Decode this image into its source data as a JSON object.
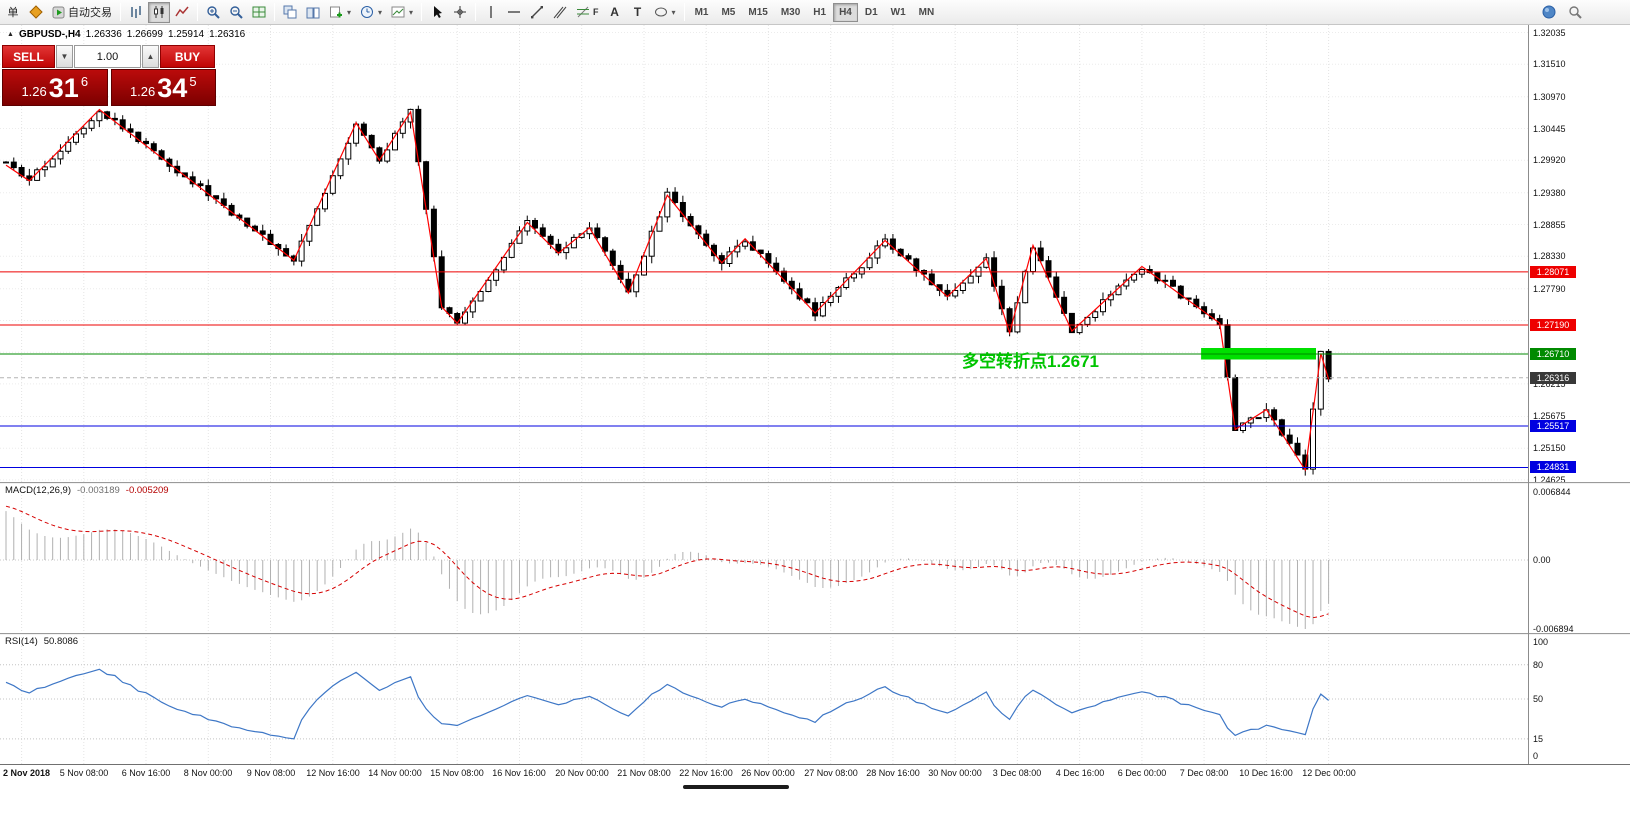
{
  "toolbar": {
    "orders_label": "单",
    "auto_trading_label": "自动交易",
    "text_tool_label": "A",
    "label_tool_label": "T",
    "fib_tool_label": "F",
    "timeframes": [
      "M1",
      "M5",
      "M15",
      "M30",
      "H1",
      "H4",
      "D1",
      "W1",
      "MN"
    ],
    "active_timeframe": "H4"
  },
  "trade_panel": {
    "sell_label": "SELL",
    "buy_label": "BUY",
    "volume_value": "1.00",
    "sell_price_prefix": "1.26",
    "sell_price_big": "31",
    "sell_price_sup": "6",
    "buy_price_prefix": "1.26",
    "buy_price_big": "34",
    "buy_price_sup": "5"
  },
  "symbol_header": {
    "marker": "▲",
    "symbol": "GBPUSD-,H4",
    "open": "1.26336",
    "high": "1.26699",
    "low": "1.25914",
    "close": "1.26316"
  },
  "annotation": {
    "text": "多空转折点1.2671",
    "color": "#00C400"
  },
  "indicators": {
    "macd_label": "MACD(12,26,9)",
    "macd_value_main": "-0.003189",
    "macd_value_signal": "-0.005209",
    "rsi_label": "RSI(14)",
    "rsi_value": "50.8086"
  },
  "chart_data": {
    "type": "candlestick",
    "title": "GBPUSD-,H4",
    "timeframe": "H4",
    "ohlc_current": [
      1.26336,
      1.26699,
      1.25914,
      1.26316
    ],
    "candle_count": 171,
    "ylim": [
      1.2459,
      1.3216
    ],
    "candle_up": "#FFFFFF",
    "candle_down": "#000000",
    "candle_outline": "#000000",
    "zigzag_color": "#FF0000",
    "macd_hist_color": "#B0B0B0",
    "macd_signal_color": "#D60000",
    "rsi_color": "#3E77C6",
    "x_label_start": 2,
    "x_label_step": 8,
    "x_labels": [
      "2 Nov 2018",
      "5 Nov 08:00",
      "6 Nov 16:00",
      "8 Nov 00:00",
      "9 Nov 08:00",
      "12 Nov 16:00",
      "14 Nov 00:00",
      "15 Nov 08:00",
      "16 Nov 16:00",
      "20 Nov 00:00",
      "21 Nov 08:00",
      "22 Nov 16:00",
      "26 Nov 00:00",
      "27 Nov 08:00",
      "28 Nov 16:00",
      "30 Nov 00:00",
      "3 Dec 08:00",
      "4 Dec 16:00",
      "6 Dec 00:00",
      "7 Dec 08:00",
      "10 Dec 16:00",
      "12 Dec 00:00"
    ],
    "y_axis_labels": [
      {
        "text": "1.32035",
        "price": 1.32035
      },
      {
        "text": "1.31510",
        "price": 1.3151
      },
      {
        "text": "1.30970",
        "price": 1.3097
      },
      {
        "text": "1.30445",
        "price": 1.30445
      },
      {
        "text": "1.29920",
        "price": 1.2992
      },
      {
        "text": "1.29380",
        "price": 1.2938
      },
      {
        "text": "1.28855",
        "price": 1.28855
      },
      {
        "text": "1.28330",
        "price": 1.2833
      },
      {
        "text": "1.27790",
        "price": 1.2779
      },
      {
        "text": "1.26215",
        "price": 1.26215
      },
      {
        "text": "1.25675",
        "price": 1.25675
      },
      {
        "text": "1.25150",
        "price": 1.2515
      },
      {
        "text": "1.24625",
        "price": 1.24625
      }
    ],
    "grid_prices": [
      1.32035,
      1.3151,
      1.3097,
      1.30445,
      1.2992,
      1.2938,
      1.28855,
      1.2833,
      1.2779,
      1.27265,
      1.2674,
      1.26215,
      1.25675,
      1.2515,
      1.24625
    ],
    "price_lines": [
      {
        "label": "1.28071",
        "price": 1.28071,
        "color": "#EE0000",
        "style": "solid"
      },
      {
        "label": "1.27190",
        "price": 1.2719,
        "color": "#EE0000",
        "style": "solid"
      },
      {
        "label": "1.26710",
        "price": 1.2671,
        "color": "#008A00",
        "style": "solid"
      },
      {
        "label": "1.26316",
        "price": 1.26316,
        "color": "#383838",
        "style": "dashed"
      },
      {
        "label": "1.25517",
        "price": 1.25517,
        "color": "#0000E0",
        "style": "solid"
      },
      {
        "label": "1.24831",
        "price": 1.24831,
        "color": "#0000E0",
        "style": "solid"
      }
    ],
    "green_zone": {
      "from_candle": 154,
      "to_candle": 168,
      "price_top": 1.2681,
      "price_bottom": 1.2662,
      "color": "#00E000"
    },
    "zigzag": [
      [
        0,
        1.2984
      ],
      [
        3,
        1.2958
      ],
      [
        12,
        1.3076
      ],
      [
        37,
        1.2826
      ],
      [
        45,
        1.3054
      ],
      [
        48,
        1.2992
      ],
      [
        52,
        1.3072
      ],
      [
        56,
        1.2749
      ],
      [
        58,
        1.2722
      ],
      [
        67,
        1.2889
      ],
      [
        71,
        1.2838
      ],
      [
        75,
        1.288
      ],
      [
        80,
        1.2772
      ],
      [
        85,
        1.2934
      ],
      [
        92,
        1.2822
      ],
      [
        95,
        1.2862
      ],
      [
        104,
        1.2739
      ],
      [
        113,
        1.2859
      ],
      [
        121,
        1.2766
      ],
      [
        126,
        1.2829
      ],
      [
        129,
        1.2706
      ],
      [
        132,
        1.2851
      ],
      [
        137,
        1.2709
      ],
      [
        146,
        1.2816
      ],
      [
        156,
        1.2722
      ],
      [
        158,
        1.2546
      ],
      [
        162,
        1.2579
      ],
      [
        167,
        1.2479
      ],
      [
        169,
        1.2672
      ],
      [
        170,
        1.2629
      ]
    ],
    "macd": {
      "type": "histogram+line",
      "params": "12,26,9",
      "current_main": -0.003189,
      "current_signal": -0.005209,
      "axis_labels": [
        {
          "text": "0.006844",
          "value": 0.006844
        },
        {
          "text": "0.00",
          "value": 0
        },
        {
          "text": "-0.006894",
          "value": -0.006894
        }
      ]
    },
    "rsi": {
      "type": "line",
      "period": 14,
      "current_value": 50.8086,
      "ylim": [
        0,
        100
      ],
      "levels": [
        80,
        50,
        15
      ],
      "axis_labels": [
        {
          "text": "100",
          "value": 100
        },
        {
          "text": "80",
          "value": 80
        },
        {
          "text": "50",
          "value": 50
        },
        {
          "text": "15",
          "value": 15
        },
        {
          "text": "0",
          "value": 0
        }
      ]
    }
  }
}
